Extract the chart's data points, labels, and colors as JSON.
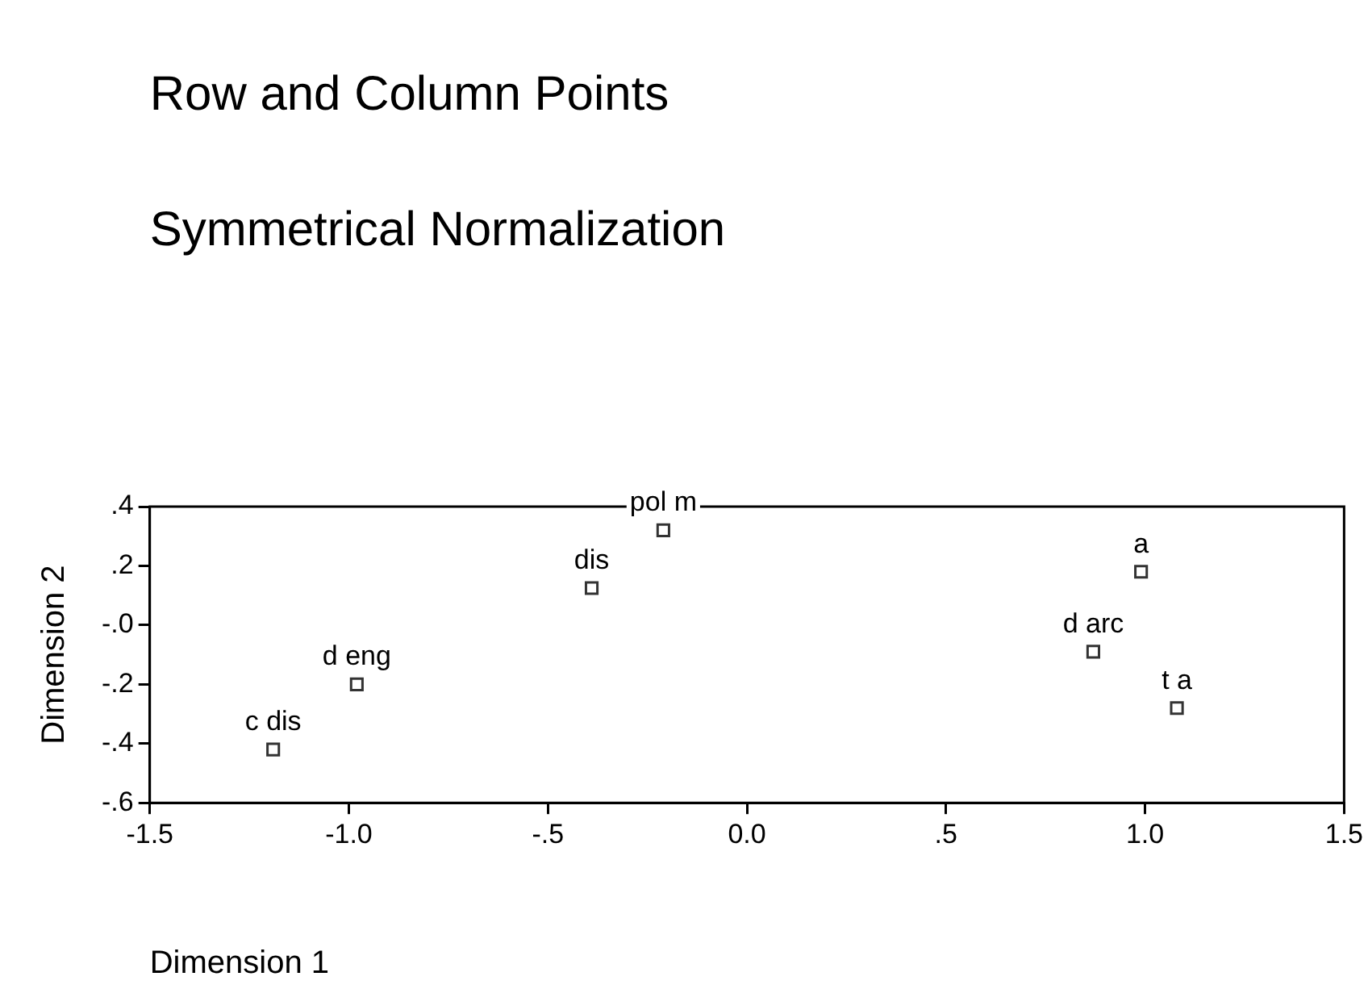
{
  "chart_data": {
    "type": "scatter",
    "title": "Row and Column Points",
    "subtitle": "Symmetrical Normalization",
    "xlabel": "Dimension 1",
    "ylabel": "Dimension 2",
    "series": [
      {
        "color": "#333333",
        "x": [
          -1.19,
          -0.98,
          -0.39,
          -0.21,
          0.99,
          0.87,
          1.08
        ],
        "values": [
          -0.42,
          -0.2,
          0.125,
          0.32,
          0.18,
          -0.09,
          -0.28
        ]
      }
    ],
    "annotations": [
      {
        "text": "c dis",
        "x": -1.19,
        "y": -0.42
      },
      {
        "text": "d eng",
        "x": -0.98,
        "y": -0.2
      },
      {
        "text": "dis",
        "x": -0.39,
        "y": 0.125
      },
      {
        "text": "pol m",
        "x": -0.21,
        "y": 0.32
      },
      {
        "text": "a",
        "x": 0.99,
        "y": 0.18
      },
      {
        "text": "d arc",
        "x": 0.87,
        "y": -0.09
      },
      {
        "text": "t a",
        "x": 1.08,
        "y": -0.28
      }
    ],
    "xlim": [
      -1.5,
      1.5
    ],
    "xticks": [
      {
        "value": -1.5,
        "label": "-1.5"
      },
      {
        "value": -1,
        "label": "-1.0"
      },
      {
        "value": -0.5,
        "label": "-.5"
      },
      {
        "value": 0,
        "label": "0.0"
      },
      {
        "value": 0.5,
        "label": ".5"
      },
      {
        "value": 1,
        "label": "1.0"
      },
      {
        "value": 1.5,
        "label": "1.5"
      }
    ],
    "ylim": [
      -0.6,
      0.4
    ],
    "yticks": [
      {
        "value": -0.6,
        "label": "-.6"
      },
      {
        "value": -0.4,
        "label": "-.4"
      },
      {
        "value": -0.2,
        "label": "-.2"
      },
      {
        "value": 0,
        "label": "-.0"
      },
      {
        "value": 0.2,
        "label": ".2"
      },
      {
        "value": 0.4,
        "label": ".4"
      }
    ],
    "grid": false,
    "legend": false,
    "marker": "square"
  }
}
